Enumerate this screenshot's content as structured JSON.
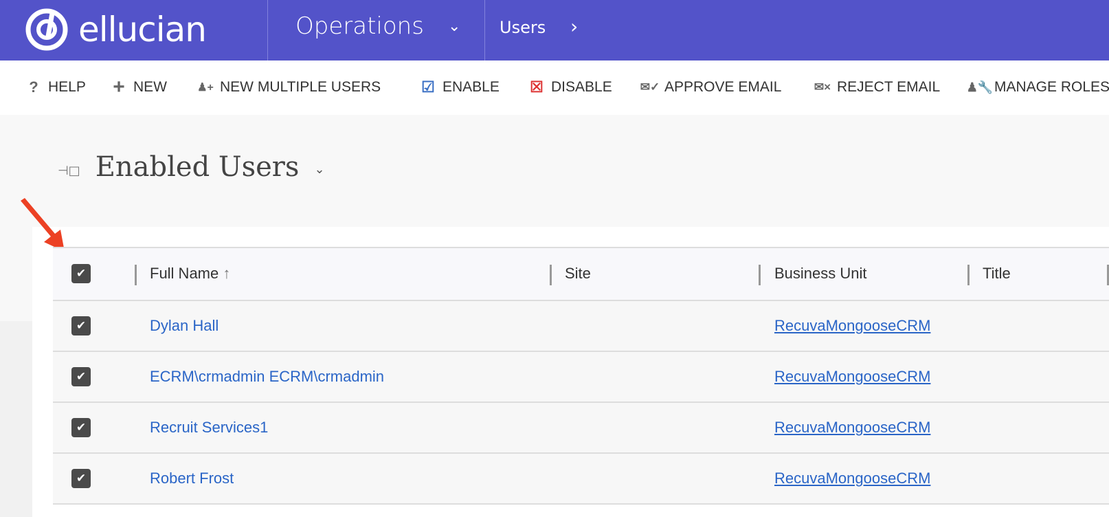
{
  "nav": {
    "logo": "ellucian",
    "area": "Operations",
    "entity": "Users",
    "brand_color": "#5353c9"
  },
  "toolbar": [
    {
      "label": "HELP",
      "icon": "help-icon"
    },
    {
      "label": "NEW",
      "icon": "plus-icon"
    },
    {
      "label": "NEW MULTIPLE USERS",
      "icon": "add-users-icon"
    },
    {
      "label": "ENABLE",
      "icon": "enable-icon"
    },
    {
      "label": "DISABLE",
      "icon": "disable-icon"
    },
    {
      "label": "APPROVE EMAIL",
      "icon": "approve-email-icon"
    },
    {
      "label": "REJECT EMAIL",
      "icon": "reject-email-icon"
    },
    {
      "label": "MANAGE ROLES",
      "icon": "manage-roles-icon"
    }
  ],
  "view": {
    "title": "Enabled Users"
  },
  "table": {
    "columns": [
      "Full Name",
      "Site",
      "Business Unit",
      "Title"
    ],
    "sort": "Full Name ascending",
    "rows": [
      {
        "name": "Dylan Hall",
        "site": "",
        "bu": "RecuvaMongooseCRM",
        "title": "",
        "checked": true
      },
      {
        "name": "ECRM\\crmadmin ECRM\\crmadmin",
        "site": "",
        "bu": "RecuvaMongooseCRM",
        "title": "",
        "checked": true
      },
      {
        "name": "Recruit Services1",
        "site": "",
        "bu": "RecuvaMongooseCRM",
        "title": "",
        "checked": true
      },
      {
        "name": "Robert Frost",
        "site": "",
        "bu": "RecuvaMongooseCRM",
        "title": "",
        "checked": true
      }
    ]
  }
}
